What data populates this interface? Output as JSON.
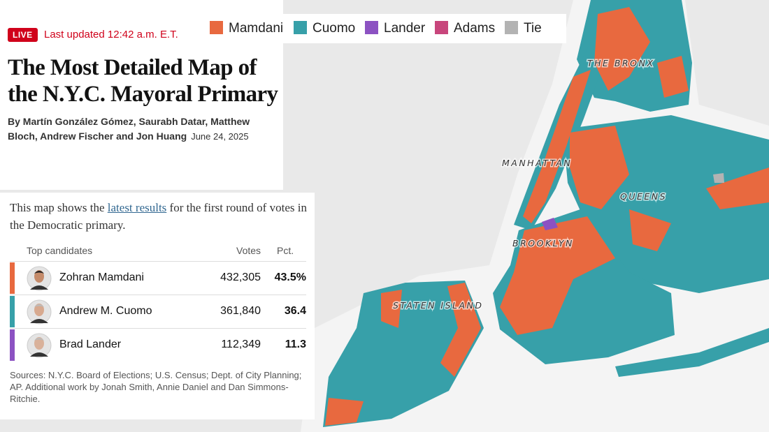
{
  "header": {
    "live": "LIVE",
    "updated": "Last updated 12:42 a.m. E.T.",
    "title": "The Most Detailed Map of the N.Y.C. Mayoral Primary",
    "byline": "By Martín González Gómez, Saurabh Datar, Matthew Bloch, Andrew Fischer and Jon Huang",
    "date": "June 24, 2025"
  },
  "intro": {
    "before": "This map shows the ",
    "link": "latest results",
    "after": " for the first round of votes in the Democratic primary."
  },
  "legend": [
    {
      "name": "Mamdani",
      "color": "#e8693f"
    },
    {
      "name": "Cuomo",
      "color": "#37a0a9"
    },
    {
      "name": "Lander",
      "color": "#8c52c2"
    },
    {
      "name": "Adams",
      "color": "#c8467c"
    },
    {
      "name": "Tie",
      "color": "#b3b3b3"
    }
  ],
  "table": {
    "columns": [
      "Top candidates",
      "Votes",
      "Pct."
    ],
    "rows": [
      {
        "name": "Zohran Mamdani",
        "votes": "432,305",
        "pct": "43.5%",
        "color": "#e8693f"
      },
      {
        "name": "Andrew M. Cuomo",
        "votes": "361,840",
        "pct": "36.4",
        "color": "#37a0a9"
      },
      {
        "name": "Brad Lander",
        "votes": "112,349",
        "pct": "11.3",
        "color": "#8c52c2"
      }
    ]
  },
  "sources": "Sources: N.Y.C. Board of Elections; U.S. Census; Dept. of City Planning; AP.  Additional work by Jonah Smith, Annie Daniel and Dan Simmons-Ritchie.",
  "map_labels": [
    "THE BRONX",
    "MANHATTAN",
    "QUEENS",
    "BROOKLYN",
    "STATEN ISLAND"
  ]
}
